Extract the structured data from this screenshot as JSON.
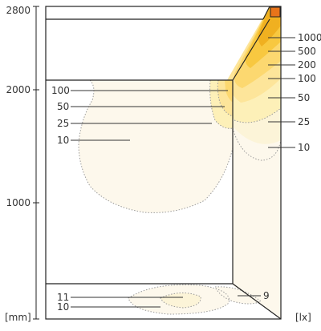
{
  "colors": {
    "frame": "#222222",
    "leader": "#333333",
    "dotted": "#9a9a9a",
    "contour": [
      "#fdf8ec",
      "#fcf4d8",
      "#fdf0b8",
      "#fde59a",
      "#fcd870",
      "#f8c840",
      "#f0b020",
      "#e28a10"
    ]
  },
  "axis_left": {
    "unit": "[mm]",
    "ticks": [
      "2800",
      "2000",
      "1000"
    ]
  },
  "axis_right": {
    "unit": "[lx]"
  },
  "labels_left_wall": [
    "100",
    "50",
    "25",
    "10"
  ],
  "labels_right_wall": [
    "1000",
    "500",
    "200",
    "100",
    "50",
    "25",
    "10"
  ],
  "labels_floor": [
    "11",
    "10"
  ],
  "label_floor_right": "9"
}
